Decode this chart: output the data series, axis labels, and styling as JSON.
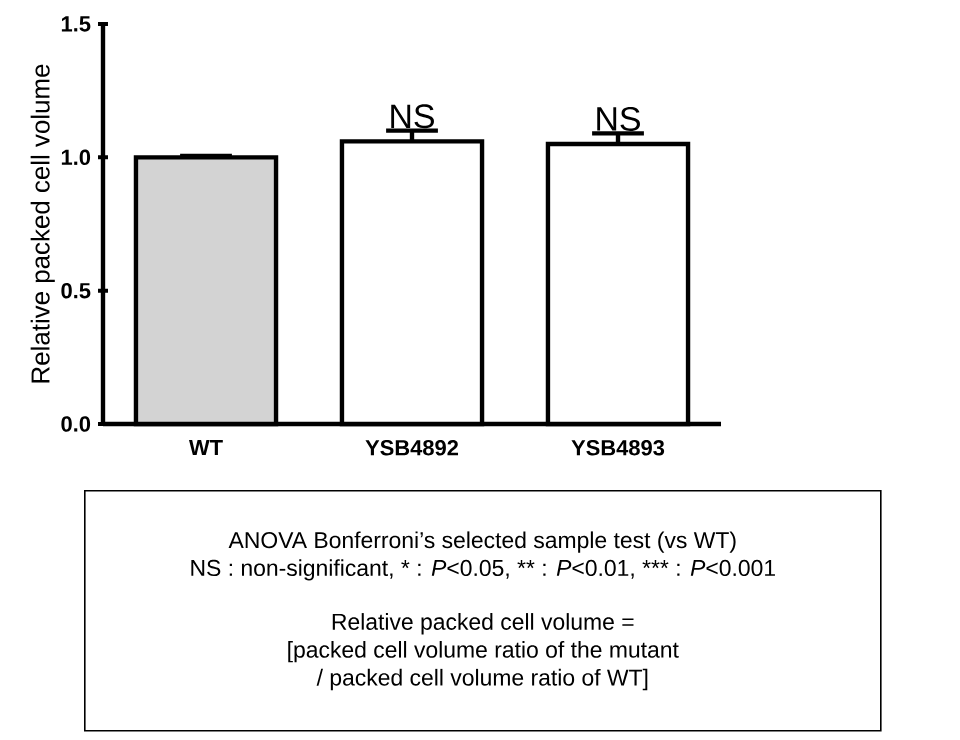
{
  "chart_data": {
    "type": "bar",
    "ylabel": "Relative packed cell volume",
    "categories": [
      "WT",
      "YSB4892",
      "YSB4893"
    ],
    "values": [
      1.0,
      1.06,
      1.05
    ],
    "errors": [
      0.005,
      0.04,
      0.04
    ],
    "colors": [
      "#d3d3d3",
      "#ffffff",
      "#ffffff"
    ],
    "ylim": [
      0,
      1.5
    ],
    "yticks": [
      {
        "value": 0,
        "label": "0.0"
      },
      {
        "value": 0.5,
        "label": "0.5"
      },
      {
        "value": 1.0,
        "label": "1.0"
      },
      {
        "value": 1.5,
        "label": "1.5"
      }
    ],
    "annotations": [
      {
        "text": "NS",
        "x": "YSB4892",
        "y": 1.1
      },
      {
        "text": "NS",
        "x": "YSB4893",
        "y": 1.09
      },
      "ANOVA Bonferroni’s selected sample test (vs WT)",
      "NS : non-significant, * : *P*<0.05, ** : *P*<0.01, *** : *P*<0.001",
      "Relative packed cell volume =",
      "[packed cell volume ratio of the mutant",
      "/ packed cell volume ratio of WT]"
    ]
  }
}
